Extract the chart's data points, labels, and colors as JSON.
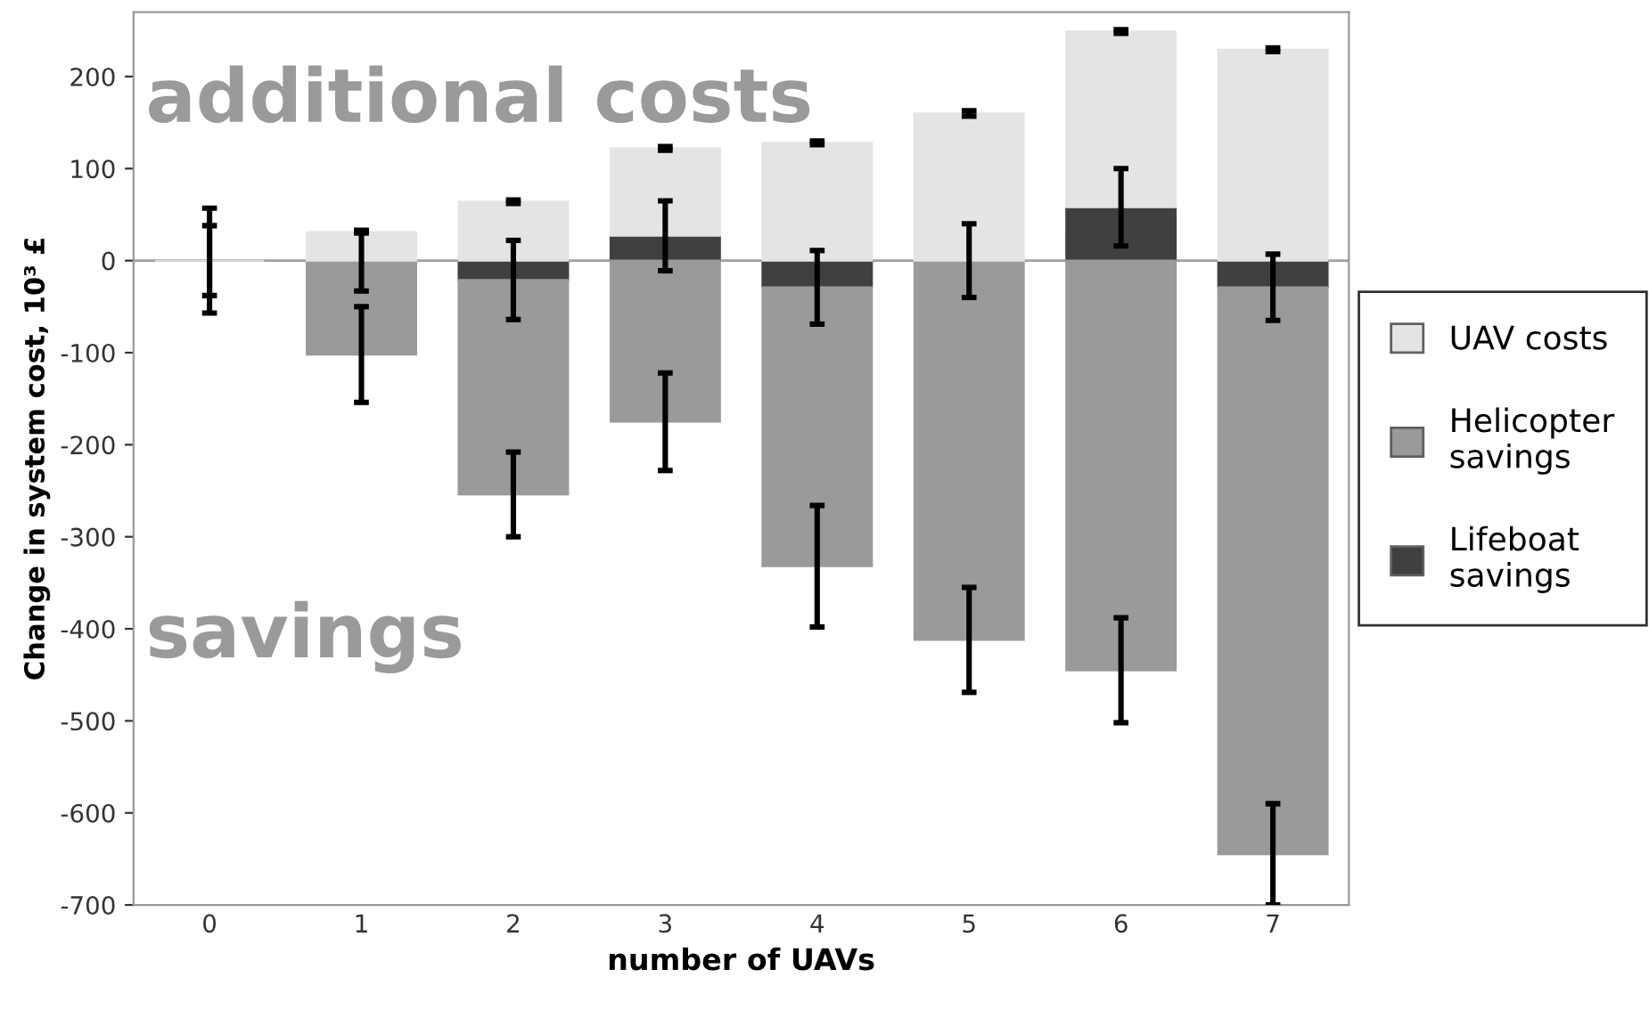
{
  "chart_data": {
    "type": "bar",
    "stacked": true,
    "xlabel": "number of UAVs",
    "ylabel": "Change in system cost, 10³ £",
    "annotations": [
      "additional costs",
      "savings"
    ],
    "categories": [
      "0",
      "1",
      "2",
      "3",
      "4",
      "5",
      "6",
      "7"
    ],
    "series": [
      {
        "name": "Lifeboat\nsavings",
        "color": "#404040",
        "values": [
          0,
          0,
          -21,
          27,
          -29,
          0,
          58,
          -29
        ],
        "errors": [
          38,
          33,
          43,
          38,
          40,
          40,
          42,
          36
        ]
      },
      {
        "name": "Helicopter\nsavings",
        "color": "#9a9a9a",
        "values": [
          0,
          -102,
          -233,
          -175,
          -303,
          -412,
          -445,
          -616
        ],
        "errors": [
          57,
          52,
          46,
          53,
          66,
          57,
          57,
          55
        ]
      },
      {
        "name": "UAV costs",
        "color": "#e4e4e4",
        "values": [
          0,
          31,
          64,
          95,
          128,
          160,
          191,
          229
        ],
        "errors": [
          null,
          1,
          2,
          2,
          2,
          3,
          2,
          2
        ]
      }
    ],
    "ylim": [
      -700,
      270
    ],
    "yticks": [
      200,
      100,
      0,
      -100,
      -200,
      -300,
      -400,
      -500,
      -600,
      -700
    ],
    "ref_lines": [
      {
        "axis": "y",
        "value": 0,
        "color": "#a0a0a0"
      }
    ],
    "legend": "right",
    "grid": false
  }
}
